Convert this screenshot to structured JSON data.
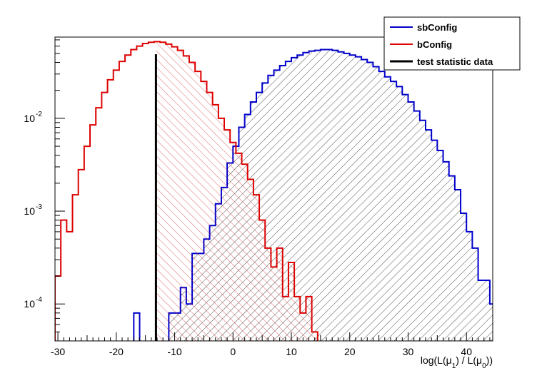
{
  "chart_data": {
    "type": "histogram",
    "title": "",
    "xlabel": "log(L(μ_1) / L(μ_0))",
    "ylabel": "",
    "xlim": [
      -30.5,
      44.5
    ],
    "ylim": [
      4e-05,
      0.075
    ],
    "y_scale": "log",
    "x_ticks": [
      -30,
      -20,
      -10,
      0,
      10,
      20,
      30,
      40
    ],
    "y_ticks": [
      {
        "value": 0.01,
        "base": "10",
        "exp": "-2"
      },
      {
        "value": 0.001,
        "base": "10",
        "exp": "-3"
      },
      {
        "value": 0.0001,
        "base": "10",
        "exp": "-4"
      }
    ],
    "grid": false,
    "legend_position": "top-right",
    "test_statistic": -13.2,
    "legend": [
      {
        "label": "sbConfig",
        "color": "#0000cc"
      },
      {
        "label": "bConfig",
        "color": "#dd0000"
      },
      {
        "label": "test statistic data",
        "color": "#000000"
      }
    ],
    "series": [
      {
        "name": "sbConfig",
        "color": "#0000cc",
        "hatch": "forward",
        "hatch_from": -13.2,
        "points": [
          [
            -16.5,
            8e-05
          ],
          [
            -15.5,
            0
          ],
          [
            -14.5,
            0
          ],
          [
            -13.5,
            0
          ],
          [
            -12.5,
            0
          ],
          [
            -11.5,
            0
          ],
          [
            -10.5,
            8e-05
          ],
          [
            -9.5,
            8e-05
          ],
          [
            -8.5,
            0.00015
          ],
          [
            -7.5,
            0.0001
          ],
          [
            -6.5,
            0.00035
          ],
          [
            -5.5,
            0.00035
          ],
          [
            -4.5,
            0.0005
          ],
          [
            -3.5,
            0.0007
          ],
          [
            -2.5,
            0.0012
          ],
          [
            -1.5,
            0.0018
          ],
          [
            -0.5,
            0.0033
          ],
          [
            0.5,
            0.005
          ],
          [
            1.5,
            0.008
          ],
          [
            2.5,
            0.011
          ],
          [
            3.5,
            0.015
          ],
          [
            4.5,
            0.019
          ],
          [
            5.5,
            0.024
          ],
          [
            6.5,
            0.029
          ],
          [
            7.5,
            0.033
          ],
          [
            8.5,
            0.037
          ],
          [
            9.5,
            0.041
          ],
          [
            10.5,
            0.045
          ],
          [
            11.5,
            0.048
          ],
          [
            12.5,
            0.051
          ],
          [
            13.5,
            0.053
          ],
          [
            14.5,
            0.054
          ],
          [
            15.5,
            0.055
          ],
          [
            16.5,
            0.055
          ],
          [
            17.5,
            0.054
          ],
          [
            18.5,
            0.052
          ],
          [
            19.5,
            0.05
          ],
          [
            20.5,
            0.048
          ],
          [
            21.5,
            0.046
          ],
          [
            22.5,
            0.043
          ],
          [
            23.5,
            0.04
          ],
          [
            24.5,
            0.036
          ],
          [
            25.5,
            0.032
          ],
          [
            26.5,
            0.028
          ],
          [
            27.5,
            0.025
          ],
          [
            28.5,
            0.022
          ],
          [
            29.5,
            0.018
          ],
          [
            30.5,
            0.015
          ],
          [
            31.5,
            0.012
          ],
          [
            32.5,
            0.0095
          ],
          [
            33.5,
            0.0075
          ],
          [
            34.5,
            0.0058
          ],
          [
            35.5,
            0.0045
          ],
          [
            36.5,
            0.0034
          ],
          [
            37.5,
            0.0024
          ],
          [
            38.5,
            0.0017
          ],
          [
            39.5,
            0.00095
          ],
          [
            40.5,
            0.0006
          ],
          [
            41.5,
            0.0004
          ],
          [
            42.5,
            0.00018
          ],
          [
            43.5,
            0.00018
          ],
          [
            44.5,
            0.0001
          ]
        ]
      },
      {
        "name": "bConfig",
        "color": "#dd0000",
        "hatch": "backward",
        "hatch_from": -13.2,
        "points": [
          [
            -30,
            0.0002
          ],
          [
            -29,
            0.0008
          ],
          [
            -28,
            0.0006
          ],
          [
            -27,
            0.0015
          ],
          [
            -26,
            0.0028
          ],
          [
            -25,
            0.005
          ],
          [
            -24,
            0.0085
          ],
          [
            -23,
            0.013
          ],
          [
            -22,
            0.019
          ],
          [
            -21,
            0.026
          ],
          [
            -20,
            0.033
          ],
          [
            -19,
            0.041
          ],
          [
            -18,
            0.048
          ],
          [
            -17,
            0.055
          ],
          [
            -16,
            0.06
          ],
          [
            -15,
            0.064
          ],
          [
            -14,
            0.066
          ],
          [
            -13,
            0.067
          ],
          [
            -12,
            0.066
          ],
          [
            -11,
            0.063
          ],
          [
            -10,
            0.059
          ],
          [
            -9,
            0.054
          ],
          [
            -8,
            0.047
          ],
          [
            -7,
            0.04
          ],
          [
            -6,
            0.032
          ],
          [
            -5,
            0.025
          ],
          [
            -4,
            0.019
          ],
          [
            -3,
            0.014
          ],
          [
            -2,
            0.01
          ],
          [
            -1,
            0.0075
          ],
          [
            0,
            0.0055
          ],
          [
            1,
            0.0042
          ],
          [
            2,
            0.0032
          ],
          [
            3,
            0.0022
          ],
          [
            4,
            0.0015
          ],
          [
            5,
            0.0008
          ],
          [
            6,
            0.0004
          ],
          [
            7,
            0.00025
          ],
          [
            8,
            0.0004
          ],
          [
            9,
            0.00012
          ],
          [
            10,
            0.00028
          ],
          [
            11,
            0.00012
          ],
          [
            12,
            8e-05
          ],
          [
            13,
            0.00012
          ],
          [
            14,
            5e-05
          ]
        ]
      }
    ]
  }
}
